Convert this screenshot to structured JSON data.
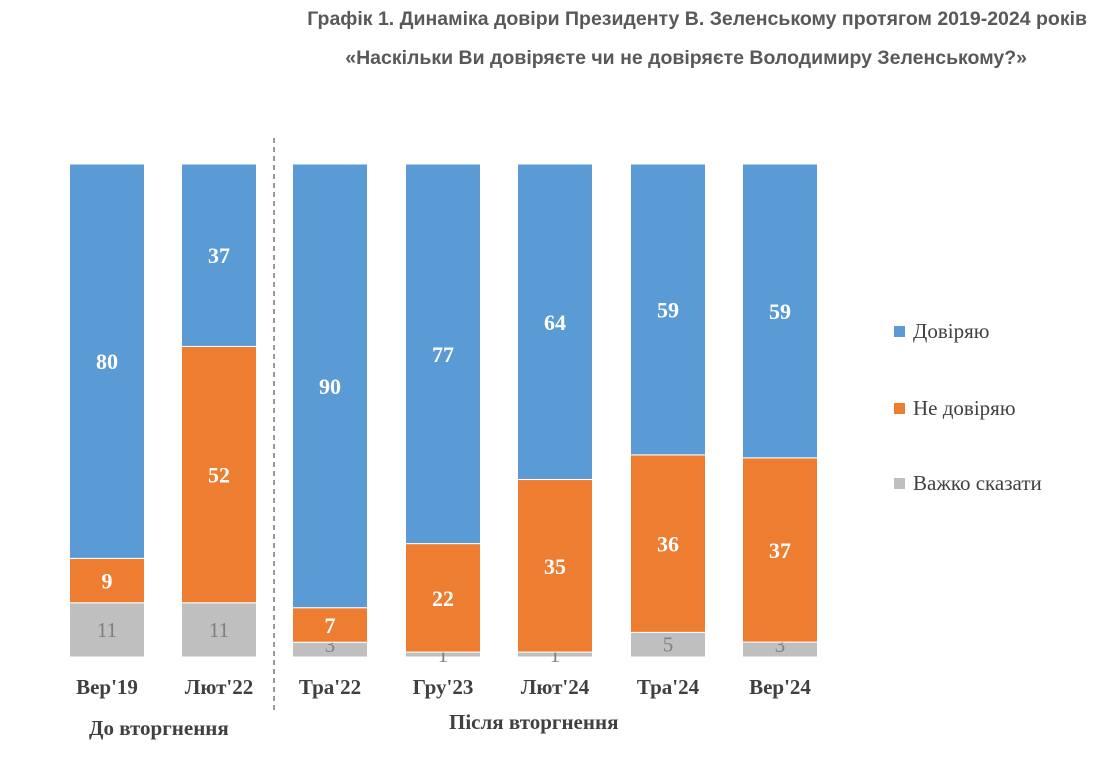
{
  "header": {
    "title": "Графік 1. Динаміка довіри Президенту В. Зеленському протягом 2019-2024 років",
    "subtitle": "«Наскільки Ви довіряєте чи не довіряєте Володимиру Зеленському?»"
  },
  "groups": {
    "before": "До вторгнення",
    "after": "Після вторгнення"
  },
  "colors": {
    "trust": "#5b9bd5",
    "distrust": "#ed7d31",
    "hard_to_say": "#bfbfbf",
    "label_light": "#ffffff",
    "label_grey": "#7f7f7f",
    "divider": "#7f7f7f"
  },
  "chart_data": {
    "type": "bar",
    "stacked": true,
    "title": "Графік 1. Динаміка довіри Президенту В. Зеленському протягом 2019-2024 років",
    "subtitle": "«Наскільки Ви довіряєте чи не довіряєте Володимиру Зеленському?»",
    "categories": [
      "Вер'19",
      "Лют'22",
      "Тра'22",
      "Гру'23",
      "Лют'24",
      "Тра'24",
      "Вер'24"
    ],
    "series": [
      {
        "name": "Важко сказати",
        "values": [
          11,
          11,
          3,
          1,
          1,
          5,
          3
        ]
      },
      {
        "name": "Не довіряю",
        "values": [
          9,
          52,
          7,
          22,
          35,
          36,
          37
        ]
      },
      {
        "name": "Довіряю",
        "values": [
          80,
          37,
          90,
          77,
          64,
          59,
          59
        ]
      }
    ],
    "ylim": [
      0,
      100
    ],
    "legend_position": "right",
    "grid": false,
    "xlabel": "",
    "ylabel": ""
  }
}
